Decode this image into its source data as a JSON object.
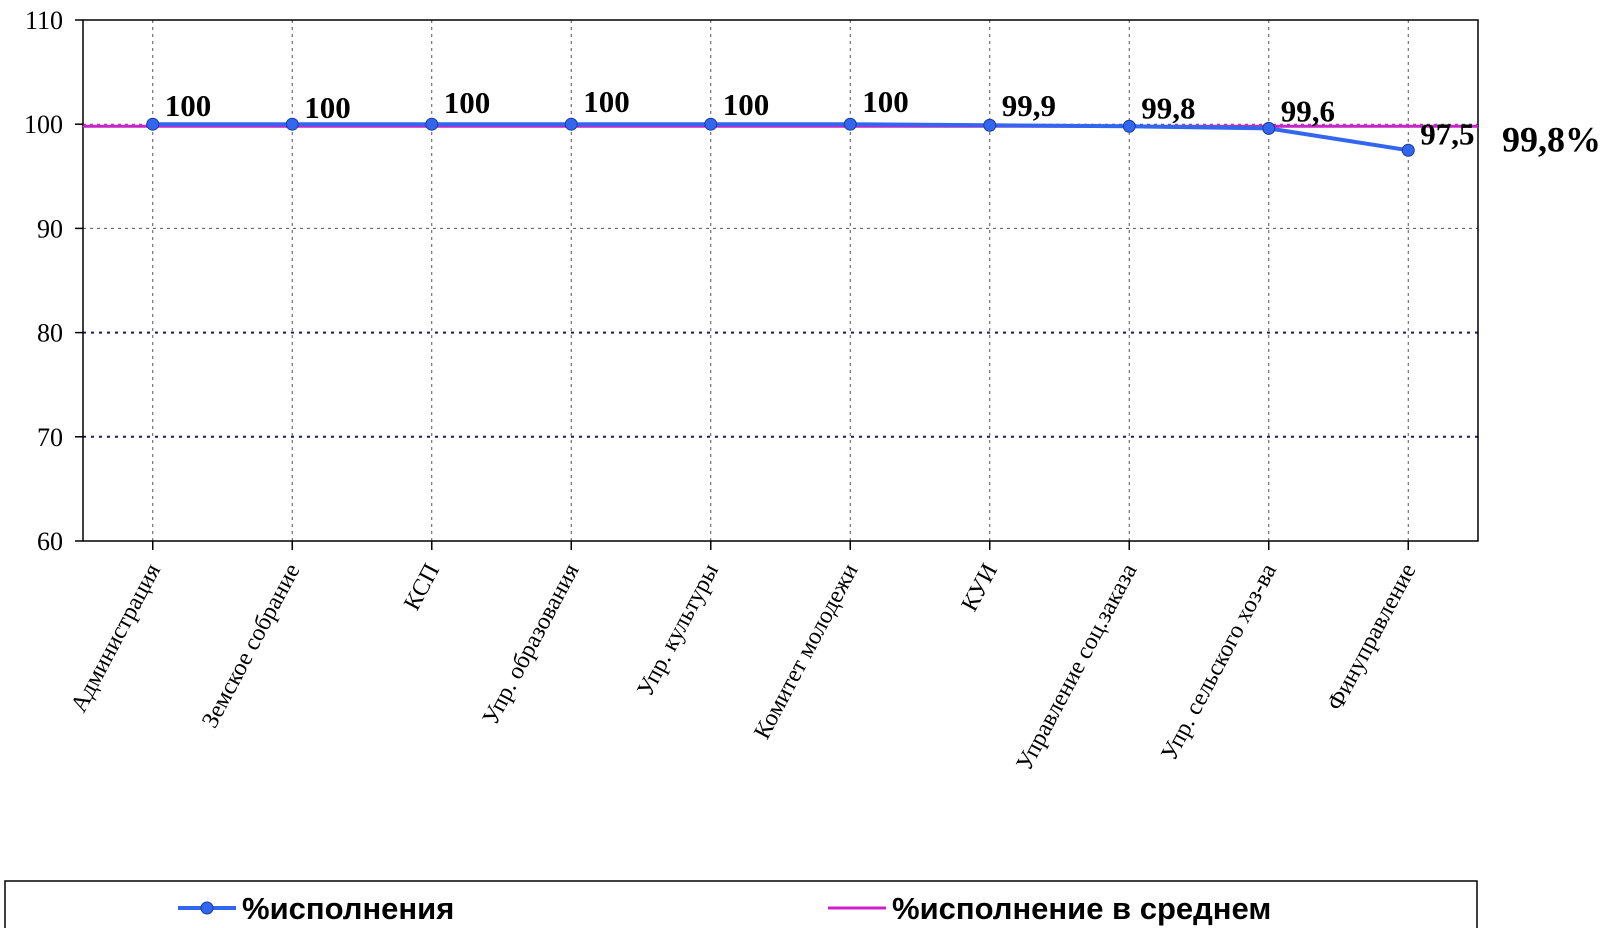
{
  "chart_data": {
    "type": "line",
    "categories": [
      "Администрация",
      "Земское собрание",
      "КСП",
      "Упр. образования",
      "Упр. культуры",
      "Комитет молодежи",
      "КУИ",
      "Управление соц.заказа",
      "Упр. сельского хоз-ва",
      "Финуправление"
    ],
    "series": [
      {
        "name": "%исполнения",
        "values": [
          100,
          100,
          100,
          100,
          100,
          100,
          99.9,
          99.8,
          99.6,
          97.5
        ],
        "labels": [
          "100",
          "100",
          "100",
          "100",
          "100",
          "100",
          "99,9",
          "99,8",
          "99,6",
          "97,5"
        ],
        "color": "#3366ee"
      },
      {
        "name": "%исполнение в среднем",
        "value": 99.8,
        "label": "99,8%",
        "color": "#cc22cc"
      }
    ],
    "ylim": [
      60,
      110
    ],
    "yticks": [
      60,
      70,
      80,
      90,
      100,
      110
    ],
    "grid": true,
    "legend": "bottom"
  }
}
